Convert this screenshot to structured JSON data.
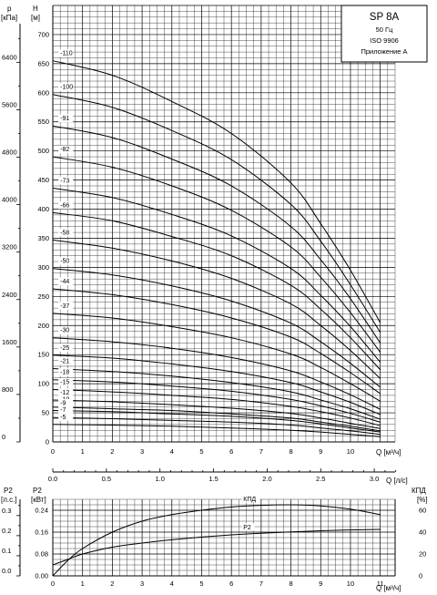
{
  "chart_data": [
    {
      "type": "line",
      "title": "SP 8A",
      "subtitle_lines": [
        "50 Гц",
        "ISO 9906",
        "Приложение А"
      ],
      "xlabel": "Q [м³/ч]",
      "ylabel_left": "p\n[кПа]",
      "ylabel_right": "H\n[м]",
      "xlim": [
        0,
        11.5
      ],
      "ylim": [
        0,
        750
      ],
      "x_ticks": [
        "0",
        "1",
        "2",
        "3",
        "4",
        "5",
        "6",
        "7",
        "8",
        "9",
        "10"
      ],
      "y_ticks": [
        "0",
        "50",
        "100",
        "150",
        "200",
        "250",
        "300",
        "350",
        "400",
        "450",
        "500",
        "550",
        "600",
        "650",
        "700"
      ],
      "p_ticks": [
        "0",
        "800",
        "1600",
        "2400",
        "3200",
        "4000",
        "4800",
        "5600",
        "6400"
      ],
      "x_secondary_label": "Q [л/с]",
      "x_secondary_ticks": [
        "0.0",
        "0.5",
        "1.0",
        "1.5",
        "2.0",
        "2.5",
        "3.0"
      ],
      "grid": true,
      "series": [
        {
          "name": "110",
          "values": [
            [
              0,
              655
            ],
            [
              2,
              630
            ],
            [
              4,
              585
            ],
            [
              6,
              530
            ],
            [
              8,
              445
            ],
            [
              9,
              375
            ],
            [
              10,
              295
            ],
            [
              11,
              205
            ]
          ]
        },
        {
          "name": "100",
          "values": [
            [
              0,
              597
            ],
            [
              2,
              575
            ],
            [
              4,
              535
            ],
            [
              6,
              485
            ],
            [
              8,
              408
            ],
            [
              9,
              345
            ],
            [
              10,
              270
            ],
            [
              11,
              188
            ]
          ]
        },
        {
          "name": "91",
          "values": [
            [
              0,
              543
            ],
            [
              2,
              523
            ],
            [
              4,
              486
            ],
            [
              6,
              440
            ],
            [
              8,
              370
            ],
            [
              9,
              313
            ],
            [
              10,
              246
            ],
            [
              11,
              170
            ]
          ]
        },
        {
          "name": "82",
          "values": [
            [
              0,
              490
            ],
            [
              2,
              472
            ],
            [
              4,
              440
            ],
            [
              6,
              398
            ],
            [
              8,
              335
            ],
            [
              9,
              283
            ],
            [
              10,
              222
            ],
            [
              11,
              154
            ]
          ]
        },
        {
          "name": "73",
          "values": [
            [
              0,
              436
            ],
            [
              2,
              420
            ],
            [
              4,
              391
            ],
            [
              6,
              354
            ],
            [
              8,
              298
            ],
            [
              9,
              252
            ],
            [
              10,
              198
            ],
            [
              11,
              137
            ]
          ]
        },
        {
          "name": "66",
          "values": [
            [
              0,
              394
            ],
            [
              2,
              380
            ],
            [
              4,
              353
            ],
            [
              6,
              320
            ],
            [
              8,
              269
            ],
            [
              9,
              228
            ],
            [
              10,
              179
            ],
            [
              11,
              124
            ]
          ]
        },
        {
          "name": "58",
          "values": [
            [
              0,
              347
            ],
            [
              2,
              333
            ],
            [
              4,
              311
            ],
            [
              6,
              281
            ],
            [
              8,
              237
            ],
            [
              9,
              200
            ],
            [
              10,
              157
            ],
            [
              11,
              109
            ]
          ]
        },
        {
          "name": "50",
          "values": [
            [
              0,
              298
            ],
            [
              2,
              287
            ],
            [
              4,
              268
            ],
            [
              6,
              242
            ],
            [
              8,
              204
            ],
            [
              9,
              172
            ],
            [
              10,
              135
            ],
            [
              11,
              94
            ]
          ]
        },
        {
          "name": "44",
          "values": [
            [
              0,
              263
            ],
            [
              2,
              253
            ],
            [
              4,
              236
            ],
            [
              6,
              213
            ],
            [
              8,
              180
            ],
            [
              9,
              152
            ],
            [
              10,
              119
            ],
            [
              11,
              83
            ]
          ]
        },
        {
          "name": "37",
          "values": [
            [
              0,
              221
            ],
            [
              2,
              213
            ],
            [
              4,
              198
            ],
            [
              6,
              179
            ],
            [
              8,
              151
            ],
            [
              9,
              128
            ],
            [
              10,
              100
            ],
            [
              11,
              70
            ]
          ]
        },
        {
          "name": "30",
          "values": [
            [
              0,
              179
            ],
            [
              2,
              172
            ],
            [
              4,
              161
            ],
            [
              6,
              145
            ],
            [
              8,
              122
            ],
            [
              9,
              103
            ],
            [
              10,
              81
            ],
            [
              11,
              56
            ]
          ]
        },
        {
          "name": "25",
          "values": [
            [
              0,
              149
            ],
            [
              2,
              144
            ],
            [
              4,
              134
            ],
            [
              6,
              121
            ],
            [
              8,
              102
            ],
            [
              9,
              86
            ],
            [
              10,
              68
            ],
            [
              11,
              47
            ]
          ]
        },
        {
          "name": "21",
          "values": [
            [
              0,
              126
            ],
            [
              2,
              121
            ],
            [
              4,
              113
            ],
            [
              6,
              102
            ],
            [
              8,
              86
            ],
            [
              9,
              72
            ],
            [
              10,
              57
            ],
            [
              11,
              39
            ]
          ]
        },
        {
          "name": "18",
          "values": [
            [
              0,
              107
            ],
            [
              2,
              103
            ],
            [
              4,
              96
            ],
            [
              6,
              87
            ],
            [
              8,
              73
            ],
            [
              9,
              62
            ],
            [
              10,
              49
            ],
            [
              11,
              34
            ]
          ]
        },
        {
          "name": "15",
          "values": [
            [
              0,
              90
            ],
            [
              2,
              86
            ],
            [
              4,
              80
            ],
            [
              6,
              73
            ],
            [
              8,
              61
            ],
            [
              9,
              52
            ],
            [
              10,
              41
            ],
            [
              11,
              28
            ]
          ]
        },
        {
          "name": "12",
          "values": [
            [
              0,
              72
            ],
            [
              2,
              69
            ],
            [
              4,
              64
            ],
            [
              6,
              58
            ],
            [
              8,
              49
            ],
            [
              9,
              41
            ],
            [
              10,
              32
            ],
            [
              11,
              23
            ]
          ]
        },
        {
          "name": "10",
          "values": [
            [
              0,
              60
            ],
            [
              2,
              57
            ],
            [
              4,
              54
            ],
            [
              6,
              48
            ],
            [
              8,
              41
            ],
            [
              9,
              34
            ],
            [
              10,
              27
            ],
            [
              11,
              19
            ]
          ]
        },
        {
          "name": "9",
          "values": [
            [
              0,
              54
            ],
            [
              2,
              52
            ],
            [
              4,
              48
            ],
            [
              6,
              44
            ],
            [
              8,
              37
            ],
            [
              9,
              31
            ],
            [
              10,
              24
            ],
            [
              11,
              17
            ]
          ]
        },
        {
          "name": "7",
          "values": [
            [
              0,
              42
            ],
            [
              2,
              40
            ],
            [
              4,
              37
            ],
            [
              6,
              34
            ],
            [
              8,
              29
            ],
            [
              9,
              24
            ],
            [
              10,
              19
            ],
            [
              11,
              13
            ]
          ]
        },
        {
          "name": "5",
          "values": [
            [
              0,
              30
            ],
            [
              2,
              29
            ],
            [
              4,
              27
            ],
            [
              6,
              24
            ],
            [
              8,
              20
            ],
            [
              9,
              17
            ],
            [
              10,
              13
            ],
            [
              11,
              9
            ]
          ]
        }
      ]
    },
    {
      "type": "line",
      "xlabel": "Q [м³/ч]",
      "ylabel_p2_hp": "P2\n[л.с.]",
      "ylabel_p2_kw": "P2\n[кВт]",
      "ylabel_eff": "КПД\n[%]",
      "xlim": [
        0,
        11.5
      ],
      "ylim_kw": [
        0,
        0.28
      ],
      "kw_ticks": [
        "0.00",
        "0.08",
        "0.16",
        "0.24"
      ],
      "hp_ticks": [
        "0.0",
        "0.1",
        "0.2",
        "0.3"
      ],
      "eff_ticks": [
        "0",
        "20",
        "40",
        "60"
      ],
      "x_ticks": [
        "0",
        "1",
        "2",
        "3",
        "4",
        "5",
        "6",
        "7",
        "8",
        "9",
        "10",
        "11"
      ],
      "grid": true,
      "series": [
        {
          "name": "КПД",
          "values": [
            [
              0,
              0
            ],
            [
              0.5,
              14
            ],
            [
              1,
              25
            ],
            [
              2,
              40
            ],
            [
              3,
              50
            ],
            [
              4,
              56
            ],
            [
              5,
              60
            ],
            [
              6,
              63
            ],
            [
              7,
              64.5
            ],
            [
              8,
              65
            ],
            [
              9,
              64
            ],
            [
              10,
              61
            ],
            [
              11,
              56
            ]
          ]
        },
        {
          "name": "P2",
          "values": [
            [
              0,
              0.04
            ],
            [
              0.5,
              0.06
            ],
            [
              1,
              0.08
            ],
            [
              2,
              0.105
            ],
            [
              3,
              0.12
            ],
            [
              4,
              0.132
            ],
            [
              5,
              0.142
            ],
            [
              6,
              0.15
            ],
            [
              7,
              0.156
            ],
            [
              8,
              0.161
            ],
            [
              9,
              0.165
            ],
            [
              10,
              0.168
            ],
            [
              11,
              0.17
            ]
          ]
        }
      ]
    }
  ]
}
